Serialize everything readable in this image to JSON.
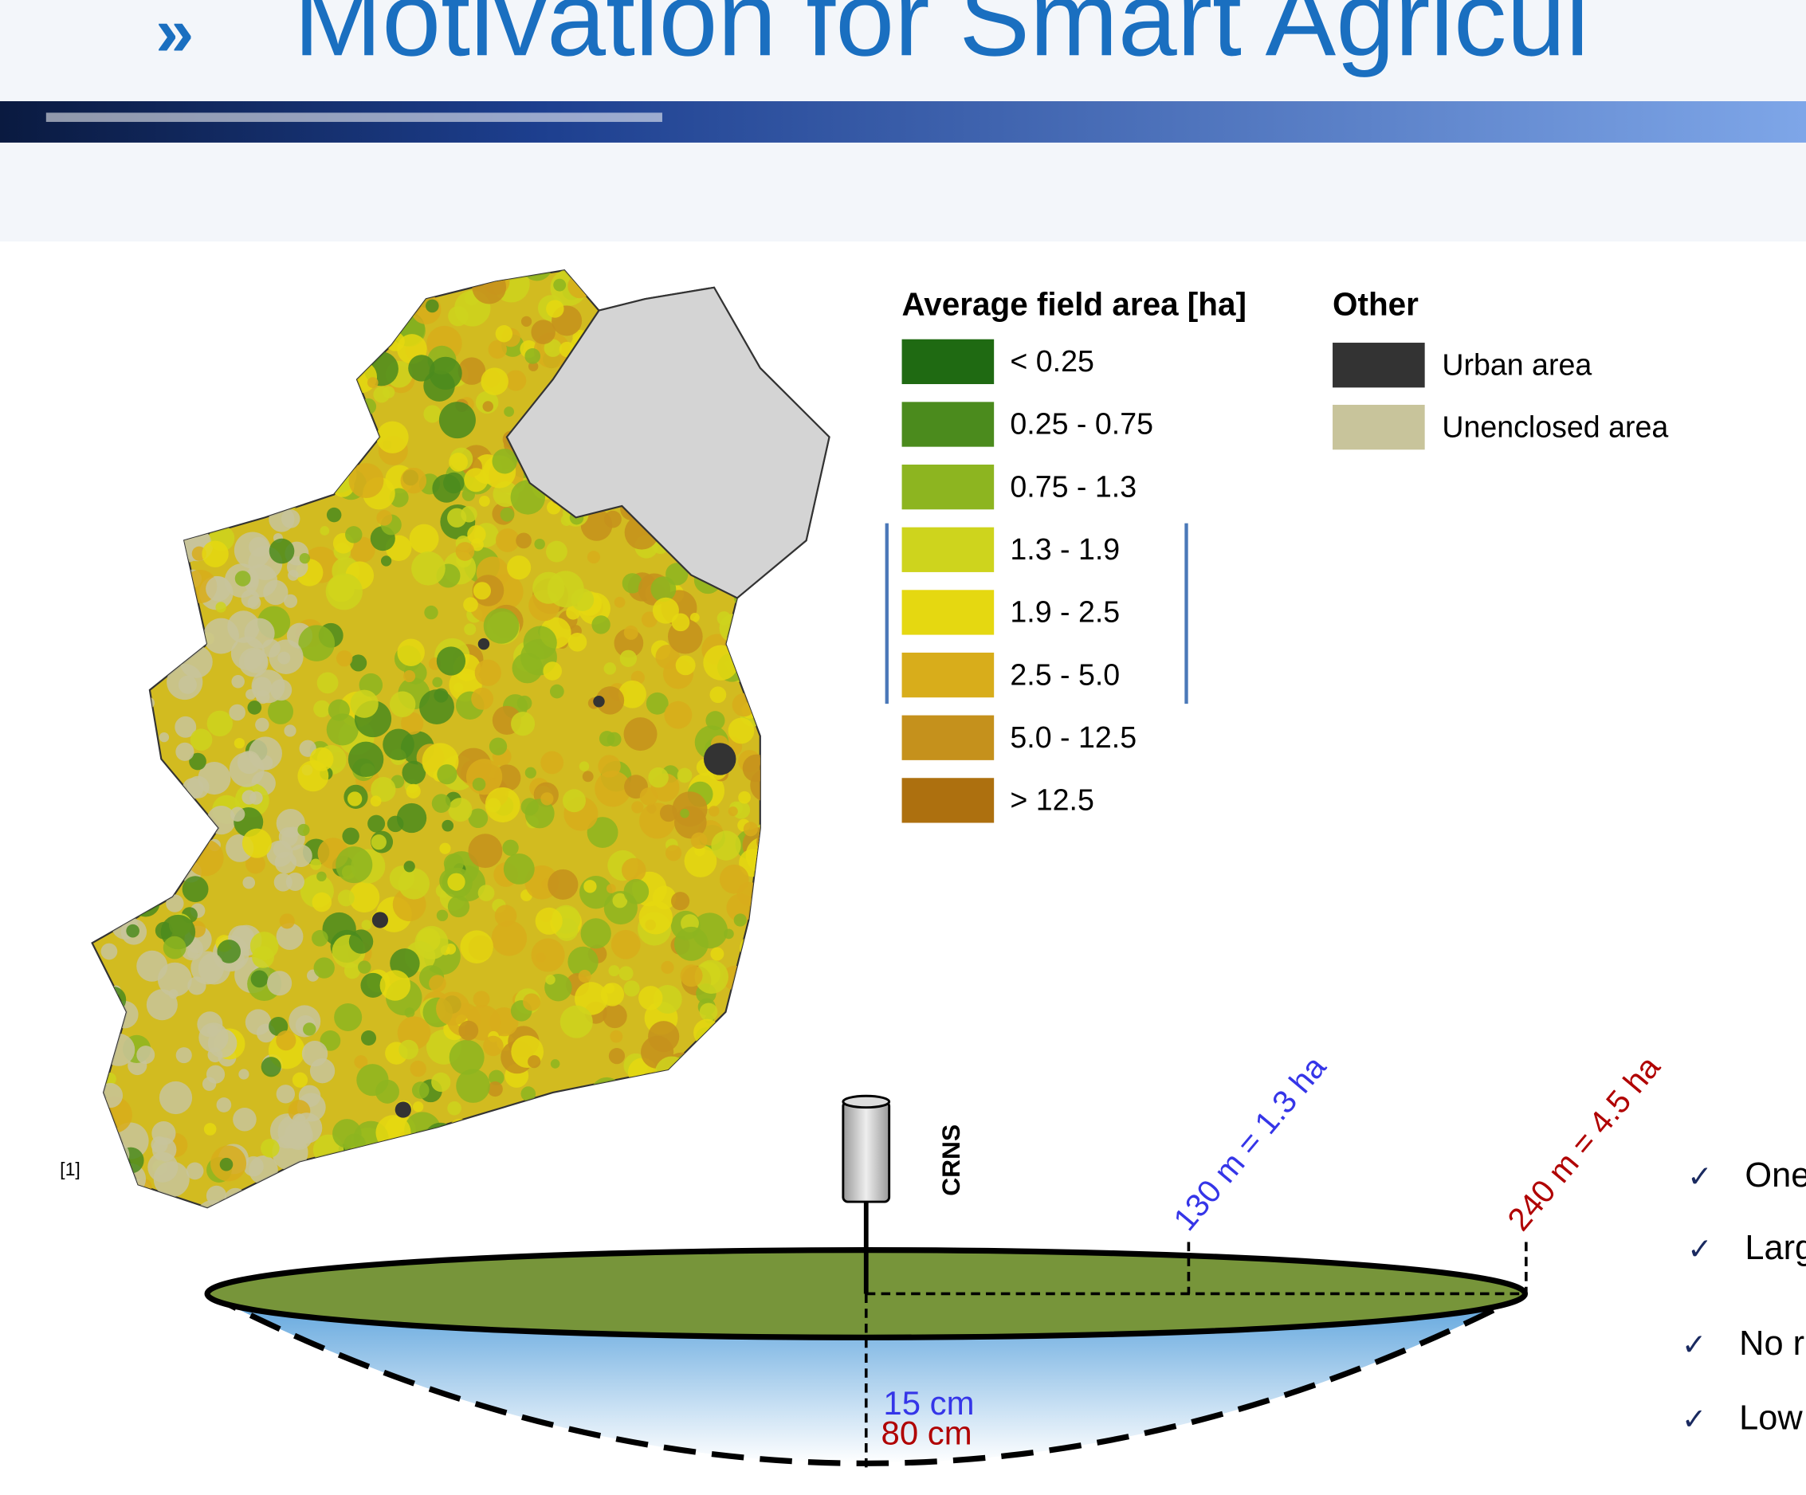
{
  "title": "Motivation for Smart Agricul",
  "legend": {
    "title": "Average field area [ha]",
    "items": [
      {
        "label": "< 0.25",
        "color": "#1f6a12"
      },
      {
        "label": "0.25 - 0.75",
        "color": "#4b8b1d"
      },
      {
        "label": "0.75 - 1.3",
        "color": "#8db520"
      },
      {
        "label": "1.3 - 1.9",
        "color": "#ced41d"
      },
      {
        "label": "1.9 - 2.5",
        "color": "#e5d811"
      },
      {
        "label": "2.5 - 5.0",
        "color": "#d8ad1b"
      },
      {
        "label": "5.0 - 12.5",
        "color": "#c5911c"
      },
      {
        "label": "> 12.5",
        "color": "#ad700f"
      }
    ]
  },
  "other": {
    "title": "Other",
    "items": [
      {
        "label": "Urban area",
        "color": "#333333"
      },
      {
        "label": "Unenclosed area",
        "color": "#c8c49b"
      }
    ]
  },
  "citation": "[1]",
  "diagram": {
    "sensor_label": "CRNS",
    "radius_small": "130 m = 1.3 ha",
    "radius_large": "240 m = 4.5 ha",
    "depth_small": "15 cm",
    "depth_large": "80 cm"
  },
  "bullets": [
    "One",
    "Larg",
    "No r",
    "Low"
  ]
}
